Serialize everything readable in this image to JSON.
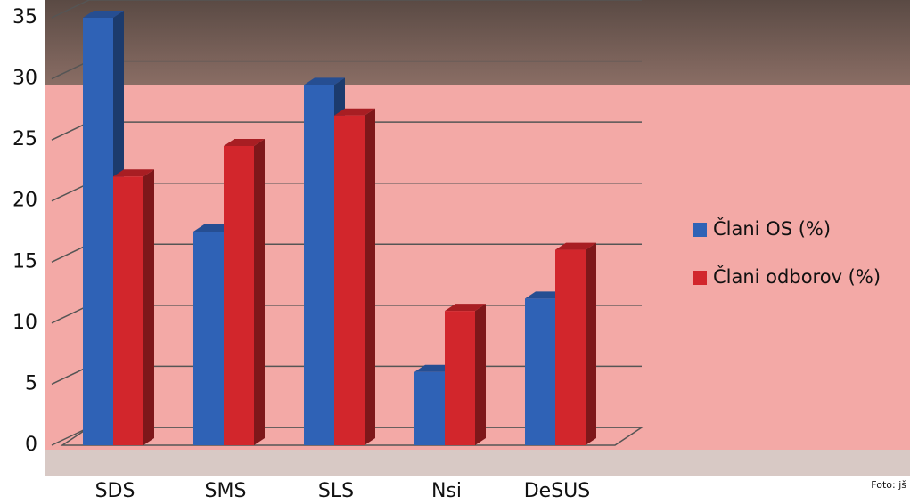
{
  "chart_data": {
    "type": "bar",
    "categories": [
      "SDS",
      "SMS",
      "SLS",
      "Nsi",
      "DeSUS"
    ],
    "series": [
      {
        "name": "Člani OS (%)",
        "color": "#2f62b6",
        "values": [
          35,
          17.5,
          29.5,
          6,
          12
        ]
      },
      {
        "name": "Člani odborov (%)",
        "color": "#d2262c",
        "values": [
          22,
          24.5,
          27,
          11,
          16
        ]
      }
    ],
    "ylim": [
      0,
      35
    ],
    "yticks": [
      0,
      5,
      10,
      15,
      20,
      25,
      30,
      35
    ],
    "grid": true,
    "legend": "right",
    "credit": "Foto: jš"
  }
}
